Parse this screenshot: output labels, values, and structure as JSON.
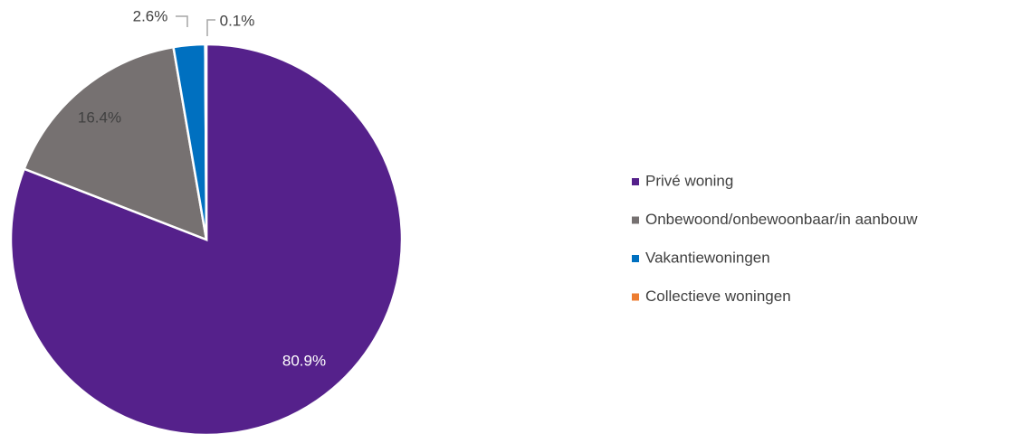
{
  "chart_data": {
    "type": "pie",
    "categories": [
      "Privé woning",
      "Onbewoond/onbewoonbaar/in aanbouw",
      "Vakantiewoningen",
      "Collectieve woningen"
    ],
    "values": [
      80.9,
      16.4,
      2.6,
      0.1
    ],
    "value_labels": [
      "80.9%",
      "16.4%",
      "2.6%",
      "0.1%"
    ],
    "colors": [
      "#55218b",
      "#767171",
      "#0070c0",
      "#ed7d31"
    ],
    "legend": "right"
  }
}
